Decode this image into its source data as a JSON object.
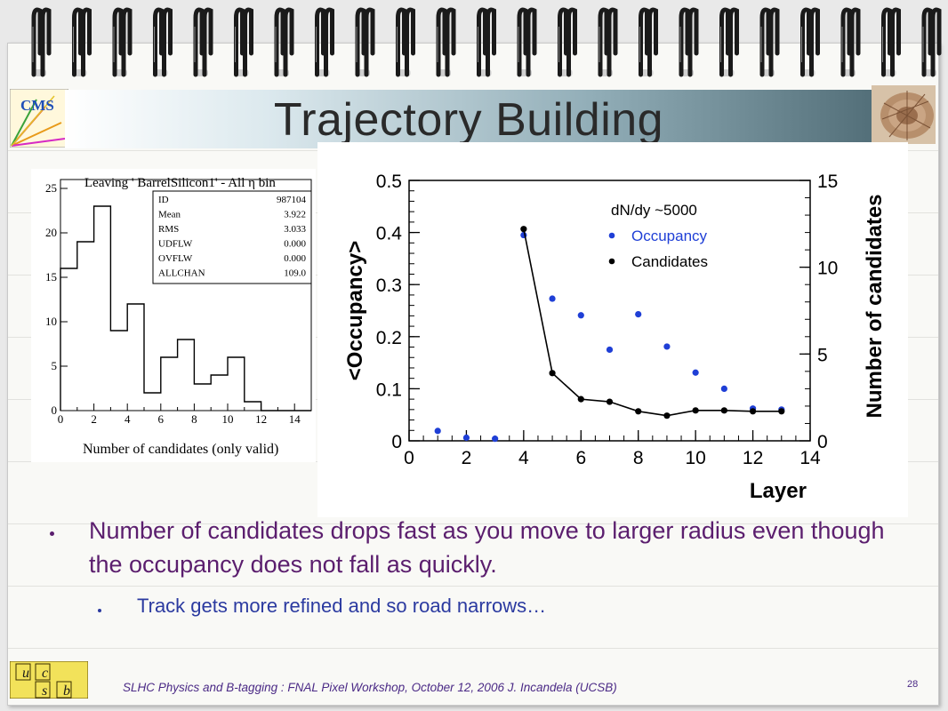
{
  "slide": {
    "title": "Trajectory Building",
    "bullet_1": "Number of candidates drops fast as you move to larger radius even though the occupancy does not fall as quickly.",
    "bullet_2": "Track gets more refined and so road narrows…",
    "footer": "SLHC Physics and B-tagging : FNAL Pixel Workshop, October 12, 2006   J. Incandela (UCSB)",
    "page_number": "28",
    "logo_text": "CMS",
    "quark_letters": [
      "u",
      "c",
      "s",
      "b"
    ],
    "colors": {
      "bullet_text": "#5b1e6e",
      "sub_bullet_text": "#2b3aa0",
      "occupancy_series": "#1f3fd6",
      "candidates_series": "#000000"
    }
  },
  "chart_data": [
    {
      "type": "bar",
      "title": "Leaving  ' BarrelSilicon1' - All η bin",
      "xlabel": "Number of candidates (only valid)",
      "ylabel": "",
      "bin_edges": [
        0,
        1,
        2,
        3,
        4,
        5,
        6,
        7,
        8,
        9,
        10,
        11,
        12,
        13,
        14,
        15
      ],
      "values": [
        16,
        19,
        23,
        9,
        12,
        2,
        6,
        8,
        3,
        4,
        6,
        1,
        0,
        0,
        0
      ],
      "xlim": [
        0,
        15
      ],
      "ylim": [
        0,
        26
      ],
      "xticks": [
        "0",
        "2",
        "4",
        "6",
        "8",
        "10",
        "12",
        "14"
      ],
      "yticks": [
        "0",
        "5",
        "10",
        "15",
        "20",
        "25"
      ],
      "stats": [
        {
          "label": "ID",
          "value": "987104"
        },
        {
          "label": "Mean",
          "value": "3.922"
        },
        {
          "label": "RMS",
          "value": "3.033"
        },
        {
          "label": "UDFLW",
          "value": "0.000"
        },
        {
          "label": "OVFLW",
          "value": "0.000"
        },
        {
          "label": "ALLCHAN",
          "value": "109.0"
        }
      ]
    },
    {
      "type": "scatter",
      "xlabel": "Layer",
      "ylabel": "<Occupancy>",
      "y2label": "Number of candidates",
      "xlim": [
        0,
        14
      ],
      "ylim": [
        0,
        0.5
      ],
      "y2lim": [
        0,
        15
      ],
      "xticks": [
        "0",
        "2",
        "4",
        "6",
        "8",
        "10",
        "12",
        "14"
      ],
      "yticks": [
        "0",
        "0.1",
        "0.2",
        "0.3",
        "0.4",
        "0.5"
      ],
      "y2ticks": [
        "0",
        "5",
        "10",
        "15"
      ],
      "legend_title": "dN/dy ~5000",
      "series": [
        {
          "name": "Occupancy",
          "color": "#1f3fd6",
          "axis": "left",
          "x": [
            1,
            2,
            3,
            4,
            5,
            6,
            7,
            8,
            9,
            10,
            11,
            12,
            13
          ],
          "y": [
            0.019,
            0.006,
            0.004,
            0.395,
            0.273,
            0.241,
            0.175,
            0.243,
            0.181,
            0.131,
            0.1,
            0.062,
            0.06
          ]
        },
        {
          "name": "Candidates",
          "color": "#000000",
          "axis": "right",
          "line": true,
          "x": [
            4,
            5,
            6,
            7,
            8,
            9,
            10,
            11,
            12,
            13
          ],
          "y": [
            12.2,
            3.9,
            2.4,
            2.25,
            1.7,
            1.45,
            1.75,
            1.75,
            1.7,
            1.7
          ]
        }
      ]
    }
  ]
}
